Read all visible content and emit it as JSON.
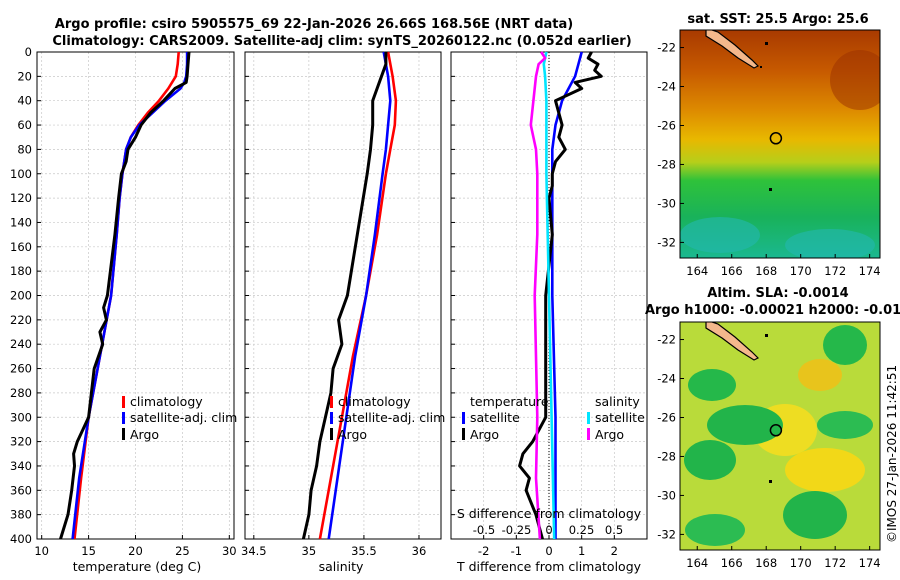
{
  "titles": {
    "line1": "Argo profile: csiro 5905575_69 22-Jan-2026 26.66S 168.56E (NRT data)",
    "line2": "Climatology: CARS2009. Satellite-adj clim: synTS_20260122.nc (0.052d earlier)"
  },
  "watermark": "©IMOS 27-Jan-2026 11:42:51",
  "colors": {
    "climatology": "#ff0000",
    "satellite": "#0000ff",
    "argo": "#000000",
    "sat_salinity": "#00e5ff",
    "argo_salinity": "#ff00ff"
  },
  "chart_data": [
    {
      "id": "temperature",
      "type": "line",
      "xlabel": "temperature (deg C)",
      "xlim": [
        9.5,
        30.5
      ],
      "ylim": [
        0,
        400
      ],
      "xticks": [
        "10",
        "15",
        "20",
        "25",
        "30"
      ],
      "yticks": [
        "0",
        "20",
        "40",
        "60",
        "80",
        "100",
        "120",
        "140",
        "160",
        "180",
        "200",
        "220",
        "240",
        "260",
        "280",
        "300",
        "320",
        "340",
        "360",
        "380",
        "400"
      ],
      "legend": [
        "climatology",
        "satellite-adj. clim",
        "Argo"
      ],
      "series": [
        {
          "name": "climatology",
          "depth": [
            0,
            10,
            20,
            30,
            40,
            50,
            60,
            70,
            80,
            100,
            120,
            150,
            200,
            250,
            300,
            350,
            400
          ],
          "values": [
            24.6,
            24.5,
            24.3,
            23.5,
            22.5,
            21.3,
            20.3,
            19.5,
            19.0,
            18.6,
            18.3,
            18.0,
            17.4,
            16.2,
            15.0,
            14.2,
            13.5
          ]
        },
        {
          "name": "satellite-adj. clim",
          "depth": [
            0,
            10,
            20,
            25,
            30,
            40,
            50,
            60,
            70,
            80,
            100,
            120,
            150,
            200,
            250,
            300,
            350,
            400
          ],
          "values": [
            25.5,
            25.5,
            25.4,
            25.2,
            24.8,
            23.2,
            21.8,
            20.4,
            19.5,
            19.0,
            18.6,
            18.3,
            18.0,
            17.4,
            16.2,
            15.0,
            14.0,
            13.3
          ]
        },
        {
          "name": "Argo",
          "depth": [
            0,
            10,
            20,
            25,
            30,
            40,
            50,
            60,
            70,
            80,
            90,
            100,
            120,
            150,
            200,
            210,
            220,
            230,
            240,
            260,
            280,
            300,
            310,
            320,
            330,
            340,
            360,
            380,
            400
          ],
          "values": [
            25.7,
            25.6,
            25.5,
            25.4,
            24.2,
            23.0,
            21.6,
            20.6,
            20.0,
            19.2,
            19.0,
            18.5,
            18.2,
            17.8,
            17.0,
            16.6,
            16.9,
            16.2,
            16.5,
            15.6,
            15.3,
            15.0,
            14.4,
            13.8,
            13.4,
            13.5,
            13.2,
            12.8,
            12.0
          ]
        }
      ]
    },
    {
      "id": "salinity",
      "type": "line",
      "xlabel": "salinity",
      "xlim": [
        34.42,
        36.2
      ],
      "ylim": [
        0,
        400
      ],
      "xticks": [
        "34.5",
        "35",
        "35.5",
        "36"
      ],
      "legend": [
        "climatology",
        "satellite-adj. clim",
        "Argo"
      ],
      "series": [
        {
          "name": "climatology",
          "depth": [
            0,
            20,
            40,
            60,
            80,
            100,
            150,
            200,
            250,
            300,
            350,
            400
          ],
          "values": [
            35.72,
            35.76,
            35.79,
            35.78,
            35.74,
            35.7,
            35.62,
            35.52,
            35.4,
            35.3,
            35.2,
            35.1
          ]
        },
        {
          "name": "satellite-adj. clim",
          "depth": [
            0,
            20,
            40,
            60,
            80,
            100,
            150,
            200,
            250,
            300,
            350,
            400
          ],
          "values": [
            35.68,
            35.72,
            35.74,
            35.72,
            35.7,
            35.67,
            35.6,
            35.52,
            35.42,
            35.34,
            35.26,
            35.18
          ]
        },
        {
          "name": "Argo",
          "depth": [
            0,
            10,
            20,
            30,
            40,
            60,
            80,
            100,
            150,
            200,
            220,
            240,
            260,
            280,
            300,
            320,
            340,
            360,
            380,
            400
          ],
          "values": [
            35.7,
            35.7,
            35.66,
            35.62,
            35.58,
            35.58,
            35.56,
            35.53,
            35.44,
            35.35,
            35.27,
            35.3,
            35.22,
            35.2,
            35.15,
            35.1,
            35.07,
            35.02,
            35.0,
            34.95
          ]
        }
      ]
    },
    {
      "id": "differences",
      "type": "line",
      "xlabel": "T difference from climatology",
      "top_label": "S difference from climatology",
      "xlim": [
        -3,
        3
      ],
      "ylim": [
        0,
        400
      ],
      "xticks": [
        "-2",
        "-1",
        "0",
        "1",
        "2"
      ],
      "sticks": [
        "-0.5",
        "-0.25",
        "0",
        "0.25",
        "0.5"
      ],
      "legend_temperature": [
        "temperature",
        "satellite",
        "Argo"
      ],
      "legend_salinity": [
        "salinity",
        "satellite",
        "Argo"
      ],
      "series": [
        {
          "name": "T satellite",
          "depth": [
            0,
            10,
            20,
            30,
            40,
            50,
            60,
            80,
            100,
            150,
            200,
            300,
            400
          ],
          "values": [
            1.0,
            0.9,
            0.8,
            0.6,
            0.4,
            0.3,
            0.2,
            0.1,
            0.1,
            0.1,
            0.1,
            0.2,
            0.2
          ]
        },
        {
          "name": "T Argo",
          "depth": [
            0,
            5,
            10,
            15,
            20,
            25,
            30,
            40,
            50,
            60,
            70,
            80,
            90,
            100,
            110,
            120,
            150,
            200,
            250,
            300,
            310,
            320,
            330,
            340,
            350,
            360,
            380,
            400
          ],
          "values": [
            1.3,
            1.2,
            1.5,
            1.4,
            1.6,
            0.8,
            1.0,
            0.2,
            0.3,
            0.4,
            0.3,
            0.5,
            0.2,
            0.1,
            0.1,
            0.0,
            0.1,
            -0.1,
            -0.1,
            -0.1,
            -0.3,
            -0.5,
            -0.8,
            -0.9,
            -0.6,
            -0.7,
            -0.4,
            -0.2
          ]
        },
        {
          "name": "S satellite",
          "depth": [
            0,
            10,
            20,
            40,
            60,
            80,
            100,
            150,
            200,
            300,
            400
          ],
          "values": [
            -0.02,
            -0.04,
            -0.03,
            -0.02,
            -0.02,
            -0.02,
            -0.02,
            -0.01,
            0.0,
            0.02,
            0.04
          ]
        },
        {
          "name": "S Argo",
          "depth": [
            0,
            5,
            10,
            20,
            40,
            60,
            80,
            100,
            150,
            200,
            250,
            300,
            350,
            400
          ],
          "values": [
            -0.06,
            -0.03,
            -0.08,
            -0.1,
            -0.12,
            -0.14,
            -0.1,
            -0.09,
            -0.09,
            -0.11,
            -0.1,
            -0.09,
            -0.1,
            -0.07
          ]
        }
      ]
    }
  ],
  "maps": [
    {
      "id": "sst-map",
      "title": "sat. SST: 25.5 Argo: 25.6",
      "xticks": [
        "164",
        "166",
        "168",
        "170",
        "172",
        "174"
      ],
      "yticks": [
        "-22",
        "-24",
        "-26",
        "-28",
        "-30",
        "-32"
      ],
      "profile_lon": 168.56,
      "profile_lat": -26.66
    },
    {
      "id": "sla-map",
      "title": "Altim. SLA: -0.0014",
      "title2": "Argo h1000: -0.00021 h2000: -0.01",
      "xticks": [
        "164",
        "166",
        "168",
        "170",
        "172",
        "174"
      ],
      "yticks": [
        "-22",
        "-24",
        "-26",
        "-28",
        "-30",
        "-32"
      ],
      "profile_lon": 168.56,
      "profile_lat": -26.66
    }
  ]
}
